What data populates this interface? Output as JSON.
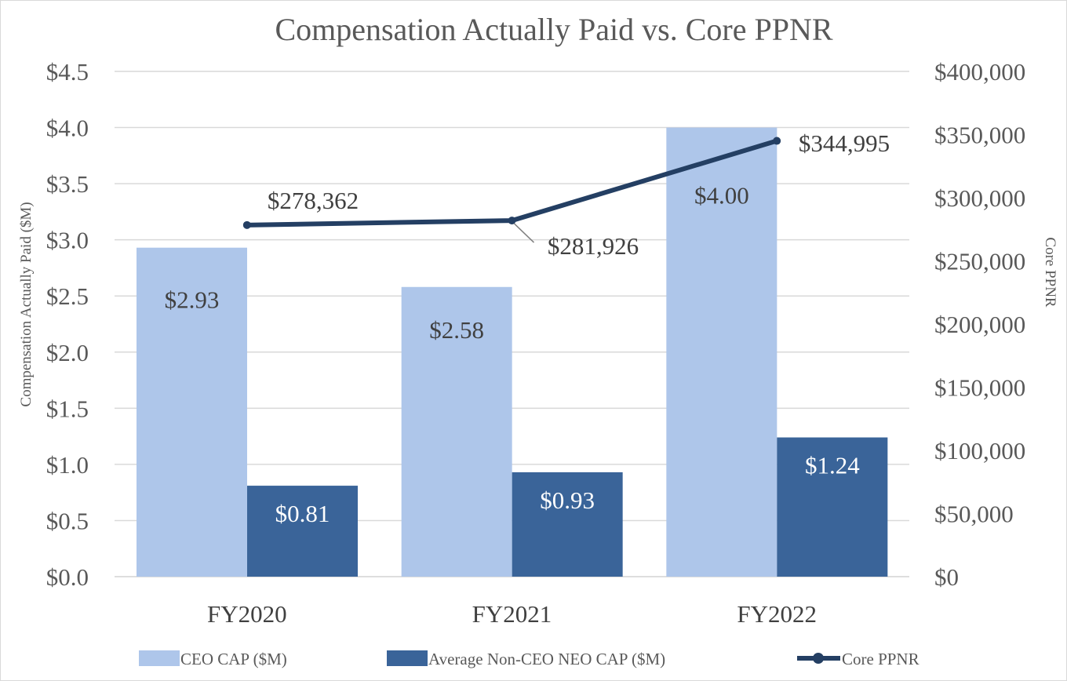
{
  "chart_data": {
    "type": "bar+line",
    "title": "Compensation Actually Paid vs. Core PPNR",
    "categories": [
      "FY2020",
      "FY2021",
      "FY2022"
    ],
    "series": [
      {
        "name": "CEO CAP ($M)",
        "type": "bar",
        "axis": "left",
        "values": [
          2.93,
          2.58,
          4.0
        ],
        "labels": [
          "$2.93",
          "$2.58",
          "$4.00"
        ],
        "color": "#aec6ea"
      },
      {
        "name": "Average Non-CEO NEO CAP ($M)",
        "type": "bar",
        "axis": "left",
        "values": [
          0.81,
          0.93,
          1.24
        ],
        "labels": [
          "$0.81",
          "$0.93",
          "$1.24"
        ],
        "color": "#3a6499"
      },
      {
        "name": "Core PPNR",
        "type": "line",
        "axis": "right",
        "values": [
          278362,
          281926,
          344995
        ],
        "labels": [
          "$278,362",
          "$281,926",
          "$344,995"
        ],
        "color": "#243f63"
      }
    ],
    "left_axis": {
      "label": "Compensation Actually Paid ($M)",
      "ylim": [
        0,
        4.5
      ],
      "ticks": [
        0,
        0.5,
        1.0,
        1.5,
        2.0,
        2.5,
        3.0,
        3.5,
        4.0,
        4.5
      ],
      "tick_labels": [
        "$0.0",
        "$0.5",
        "$1.0",
        "$1.5",
        "$2.0",
        "$2.5",
        "$3.0",
        "$3.5",
        "$4.0",
        "$4.5"
      ]
    },
    "right_axis": {
      "label": "Core PPNR",
      "ylim": [
        0,
        400000
      ],
      "ticks": [
        0,
        50000,
        100000,
        150000,
        200000,
        250000,
        300000,
        350000,
        400000
      ],
      "tick_labels": [
        "$0",
        "$50,000",
        "$100,000",
        "$150,000",
        "$200,000",
        "$250,000",
        "$300,000",
        "$350,000",
        "$400,000"
      ]
    },
    "grid": true,
    "legend_position": "bottom",
    "colors": {
      "gridline": "#d9d9d9",
      "text": "#595959"
    }
  }
}
